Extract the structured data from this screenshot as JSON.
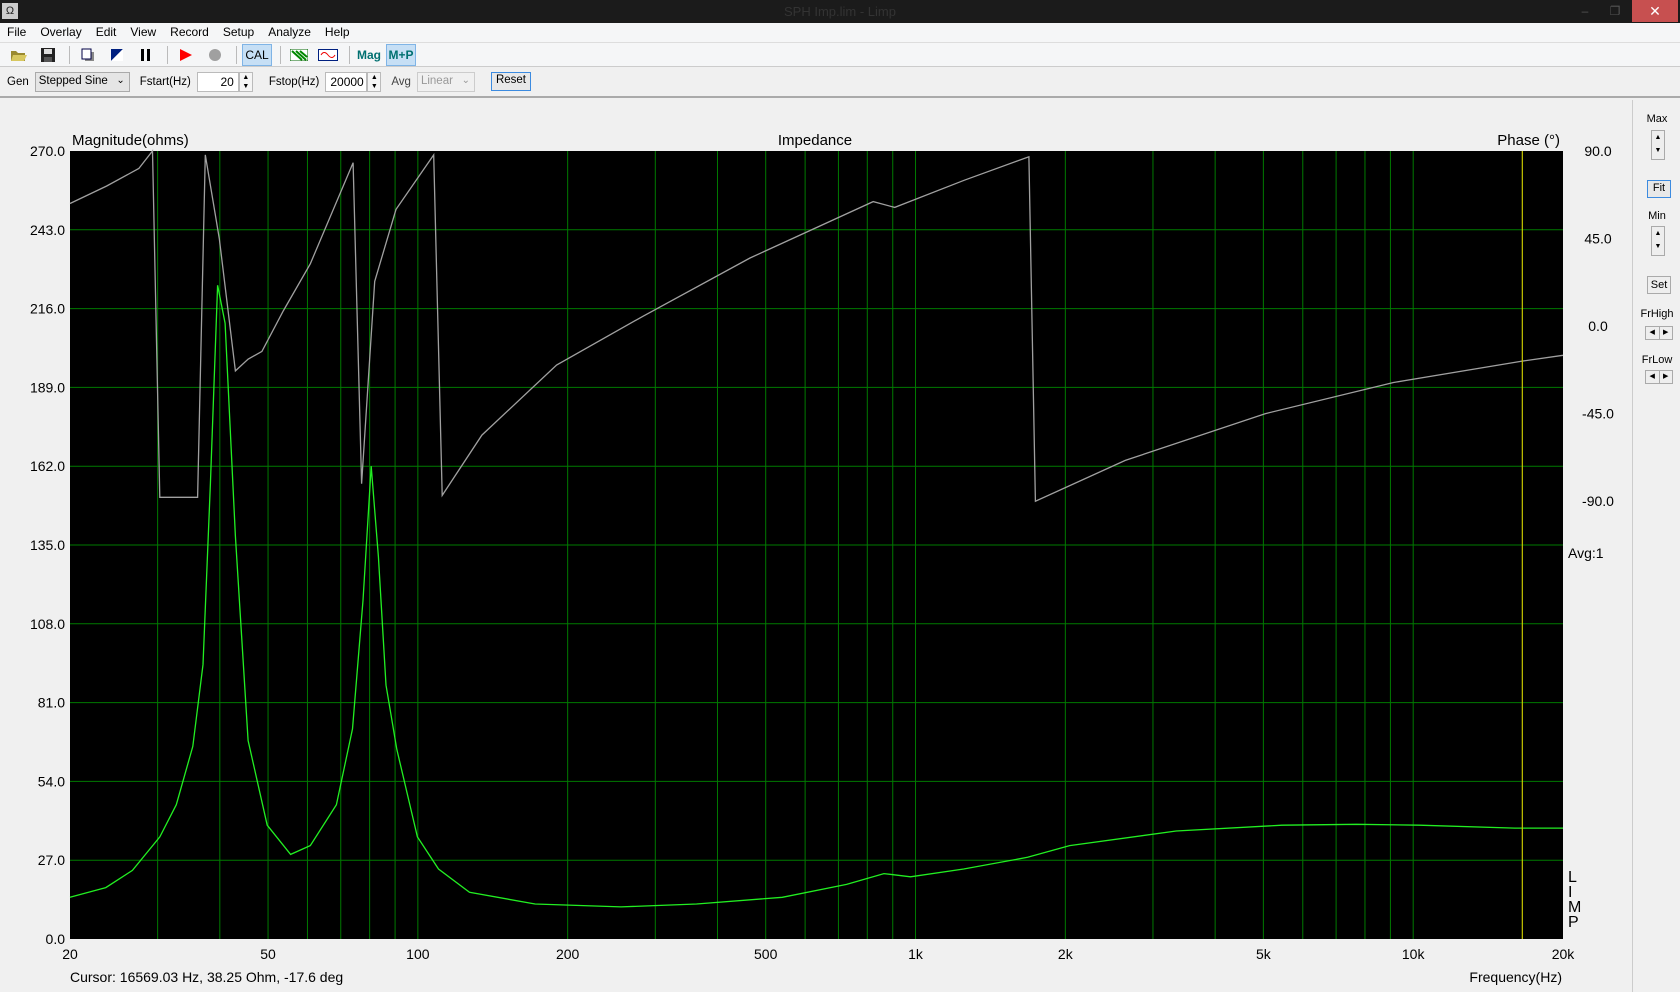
{
  "window": {
    "title": "SPH Imp.lim - Limp",
    "app_icon": "omega-icon",
    "close": "✕"
  },
  "menu": [
    "File",
    "Overlay",
    "Edit",
    "View",
    "Record",
    "Setup",
    "Analyze",
    "Help"
  ],
  "toolbar": {
    "cal": "CAL",
    "mag": "Mag",
    "mp": "M+P"
  },
  "gen": {
    "label": "Gen",
    "mode": "Stepped Sine",
    "fstart_label": "Fstart(Hz)",
    "fstart": "20",
    "fstop_label": "Fstop(Hz)",
    "fstop": "20000",
    "avg_label": "Avg",
    "avg": "Linear",
    "reset": "Reset"
  },
  "side": {
    "max": "Max",
    "fit": "Fit",
    "min": "Min",
    "set": "Set",
    "frhigh": "FrHigh",
    "frlow": "FrLow"
  },
  "status": {
    "cursor": "Cursor: 16569.03 Hz, 38.25 Ohm, -17.6 deg",
    "avg": "Avg:1",
    "limp": [
      "L",
      "I",
      "M",
      "P"
    ]
  },
  "chart_data": {
    "type": "line",
    "title": "Impedance",
    "ylabel": "Magnitude(ohms)",
    "y2label": "Phase (°)",
    "xlabel": "Frequency(Hz)",
    "xscale": "log",
    "xlim": [
      20,
      20000
    ],
    "ylim": [
      0,
      270
    ],
    "y2lim": [
      -315,
      90
    ],
    "yticks": [
      "270.0",
      "243.0",
      "216.0",
      "189.0",
      "162.0",
      "135.0",
      "108.0",
      "81.0",
      "54.0",
      "27.0",
      "0.0"
    ],
    "y2ticks": [
      "90.0",
      "45.0",
      "0.0",
      "-45.0",
      "-90.0"
    ],
    "xticks": [
      {
        "v": 20,
        "t": "20"
      },
      {
        "v": 50,
        "t": "50"
      },
      {
        "v": 100,
        "t": "100"
      },
      {
        "v": 200,
        "t": "200"
      },
      {
        "v": 500,
        "t": "500"
      },
      {
        "v": 1000,
        "t": "1k"
      },
      {
        "v": 2000,
        "t": "2k"
      },
      {
        "v": 5000,
        "t": "5k"
      },
      {
        "v": 10000,
        "t": "10k"
      },
      {
        "v": 20000,
        "t": "20k"
      }
    ],
    "grid": true,
    "cursor_hz": 16569.03,
    "colors": {
      "background": "#000000",
      "grid": "#007a00",
      "magnitude": "#22ee22",
      "phase": "#a0a0a0",
      "cursor": "#c8c800"
    },
    "series": [
      {
        "name": "Magnitude",
        "axis": "left",
        "points": [
          [
            20,
            14.3
          ],
          [
            23.6,
            17.6
          ],
          [
            26.7,
            23.5
          ],
          [
            30.3,
            35
          ],
          [
            32.7,
            46
          ],
          [
            35.3,
            66
          ],
          [
            37,
            94
          ],
          [
            38.3,
            156
          ],
          [
            39.6,
            224
          ],
          [
            41,
            211
          ],
          [
            43,
            138
          ],
          [
            45.6,
            68
          ],
          [
            49.8,
            39
          ],
          [
            55.5,
            29
          ],
          [
            60.8,
            32
          ],
          [
            68.6,
            46
          ],
          [
            73.9,
            72
          ],
          [
            77.6,
            116
          ],
          [
            80.6,
            162
          ],
          [
            83.3,
            131
          ],
          [
            86.3,
            87
          ],
          [
            90.7,
            65
          ],
          [
            99.8,
            35
          ],
          [
            110,
            24
          ],
          [
            127,
            16
          ],
          [
            172,
            12
          ],
          [
            256,
            11
          ],
          [
            363,
            12
          ],
          [
            540,
            14.3
          ],
          [
            727,
            18.7
          ],
          [
            864,
            22.4
          ],
          [
            977,
            21.3
          ],
          [
            1250,
            24
          ],
          [
            1680,
            28
          ],
          [
            2040,
            32
          ],
          [
            3340,
            37
          ],
          [
            5450,
            39
          ],
          [
            7700,
            39.3
          ],
          [
            10300,
            39
          ],
          [
            16000,
            38
          ],
          [
            20000,
            38
          ]
        ]
      },
      {
        "name": "Phase",
        "axis": "right",
        "points": [
          [
            20,
            63
          ],
          [
            23.7,
            72
          ],
          [
            27.5,
            81
          ],
          [
            29.3,
            90
          ],
          [
            30.3,
            -88
          ],
          [
            36.1,
            -88
          ],
          [
            37.4,
            88
          ],
          [
            39.9,
            45
          ],
          [
            43,
            -23
          ],
          [
            45.6,
            -17
          ],
          [
            48.6,
            -13
          ],
          [
            53.7,
            8
          ],
          [
            60.8,
            32
          ],
          [
            74.1,
            84
          ],
          [
            77.1,
            -81
          ],
          [
            81.9,
            23
          ],
          [
            90.4,
            60
          ],
          [
            107.6,
            88
          ],
          [
            111.9,
            -87
          ],
          [
            134.5,
            -56
          ],
          [
            190,
            -20
          ],
          [
            283,
            5
          ],
          [
            465,
            35
          ],
          [
            822,
            64
          ],
          [
            908,
            61
          ],
          [
            1254,
            75
          ],
          [
            1690,
            87
          ],
          [
            1741,
            -90
          ],
          [
            2640,
            -69
          ],
          [
            5040,
            -45
          ],
          [
            9130,
            -29
          ],
          [
            16560,
            -18
          ],
          [
            20000,
            -15
          ]
        ]
      }
    ]
  }
}
